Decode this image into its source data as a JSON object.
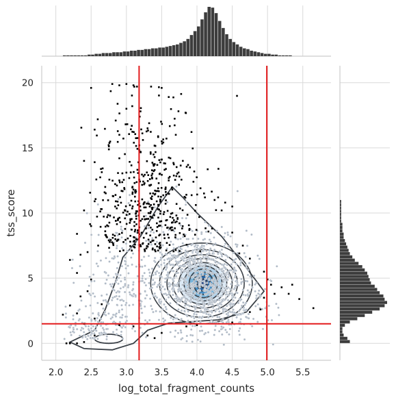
{
  "chart_data": {
    "type": "scatter",
    "subtype": "joint plot: scatter with 2D density contours and marginal histograms",
    "xlabel": "log_total_fragment_counts",
    "ylabel": "tss_score",
    "xlim": [
      1.8,
      5.9
    ],
    "ylim": [
      -1.3,
      21.3
    ],
    "x_ticks": [
      2.0,
      2.5,
      3.0,
      3.5,
      4.0,
      4.5,
      5.0,
      5.5
    ],
    "x_tick_labels": [
      "2.0",
      "2.5",
      "3.0",
      "3.5",
      "4.0",
      "4.5",
      "5.0",
      "5.5"
    ],
    "y_ticks": [
      0,
      5,
      10,
      15,
      20
    ],
    "y_tick_labels": [
      "0",
      "5",
      "10",
      "15",
      "20"
    ],
    "grid": true,
    "thresholds": {
      "vertical_lines_x": [
        3.18,
        4.99
      ],
      "horizontal_line_y": 1.5,
      "color": "#e31a1c"
    },
    "scatter": {
      "passing_color": "#b0bac6",
      "outlier_color": "#000000",
      "approx_points": [
        [
          2.8,
          19.9
        ],
        [
          2.9,
          19.8
        ],
        [
          3.0,
          19.9
        ],
        [
          3.1,
          19.8
        ],
        [
          3.15,
          19.7
        ],
        [
          3.35,
          19.7
        ],
        [
          3.5,
          19.6
        ],
        [
          2.5,
          19.6
        ],
        [
          3.0,
          18.0
        ],
        [
          3.2,
          17.8
        ],
        [
          3.6,
          18.9
        ],
        [
          3.3,
          16.5
        ],
        [
          2.9,
          16.0
        ],
        [
          2.55,
          16.4
        ],
        [
          3.5,
          15.5
        ],
        [
          3.7,
          16.0
        ],
        [
          3.8,
          14.0
        ],
        [
          3.9,
          13.5
        ],
        [
          2.4,
          14.0
        ],
        [
          2.55,
          13.9
        ],
        [
          3.2,
          14.7
        ],
        [
          2.9,
          14.2
        ],
        [
          3.0,
          13.1
        ],
        [
          3.4,
          13.3
        ],
        [
          3.6,
          12.5
        ],
        [
          3.55,
          13.8
        ],
        [
          3.75,
          12.8
        ],
        [
          3.95,
          12.4
        ],
        [
          4.05,
          11.9
        ],
        [
          3.85,
          11.4
        ],
        [
          4.1,
          11.5
        ],
        [
          4.3,
          11.2
        ],
        [
          4.4,
          10.8
        ],
        [
          4.5,
          10.5
        ],
        [
          2.7,
          12.0
        ],
        [
          2.9,
          12.5
        ],
        [
          3.1,
          11.8
        ],
        [
          3.25,
          12.2
        ],
        [
          3.45,
          11.9
        ],
        [
          2.4,
          10.2
        ],
        [
          2.55,
          10.9
        ],
        [
          2.65,
          10.3
        ],
        [
          2.85,
          10.9
        ],
        [
          3.05,
          10.6
        ],
        [
          3.2,
          10.2
        ],
        [
          2.5,
          9.0
        ],
        [
          2.7,
          8.6
        ],
        [
          2.85,
          9.4
        ],
        [
          2.3,
          8.4
        ],
        [
          2.6,
          7.5
        ],
        [
          2.45,
          7.0
        ],
        [
          2.75,
          7.9
        ],
        [
          2.2,
          6.4
        ],
        [
          2.35,
          6.8
        ],
        [
          2.3,
          5.4
        ],
        [
          2.5,
          4.9
        ],
        [
          2.45,
          4.0
        ],
        [
          2.35,
          3.6
        ],
        [
          2.2,
          2.9
        ],
        [
          2.3,
          2.3
        ],
        [
          2.1,
          2.2
        ],
        [
          2.4,
          1.5
        ],
        [
          2.55,
          1.9
        ],
        [
          2.65,
          3.0
        ],
        [
          2.15,
          0.0
        ],
        [
          2.2,
          0.0
        ],
        [
          2.3,
          0.0
        ],
        [
          2.4,
          0.1
        ],
        [
          2.55,
          0.6
        ],
        [
          3.5,
          0.8
        ],
        [
          3.3,
          0.6
        ],
        [
          3.4,
          0.4
        ],
        [
          4.25,
          11.0
        ],
        [
          4.35,
          10.2
        ],
        [
          4.5,
          8.5
        ],
        [
          4.65,
          7.5
        ],
        [
          4.75,
          6.5
        ],
        [
          4.6,
          6.9
        ],
        [
          4.95,
          5.5
        ],
        [
          5.0,
          4.9
        ],
        [
          5.05,
          4.5
        ],
        [
          5.1,
          3.8
        ],
        [
          4.95,
          3.5
        ],
        [
          5.2,
          4.3
        ],
        [
          5.35,
          4.5
        ],
        [
          5.3,
          3.8
        ],
        [
          5.45,
          3.4
        ],
        [
          4.9,
          2.6
        ],
        [
          4.75,
          2.4
        ],
        [
          5.65,
          2.7
        ],
        [
          3.1,
          1.3
        ],
        [
          2.9,
          1.4
        ],
        [
          4.0,
          1.4
        ],
        [
          3.85,
          1.3
        ],
        [
          4.5,
          1.6
        ]
      ]
    },
    "density_contours": {
      "center": [
        4.1,
        4.5
      ],
      "levels": 10,
      "line_color": "#3a4047",
      "fill_colors": [
        "#d6e6f4",
        "#a9cde6",
        "#6faed6",
        "#3c86c0",
        "#1c5ea8",
        "#0d2d6d"
      ],
      "secondary_mode": [
        2.75,
        0.35
      ]
    },
    "marginal_x_histogram": {
      "bins_start": 2.1,
      "bin_width": 0.05,
      "counts": [
        1,
        1,
        1,
        1,
        1,
        1,
        1,
        2,
        2,
        3,
        3,
        4,
        4,
        4,
        5,
        5,
        5,
        6,
        6,
        7,
        7,
        8,
        8,
        9,
        9,
        10,
        10,
        11,
        11,
        12,
        13,
        14,
        15,
        17,
        19,
        22,
        27,
        32,
        38,
        47,
        56,
        63,
        62,
        55,
        45,
        36,
        28,
        22,
        18,
        15,
        12,
        10,
        9,
        7,
        6,
        5,
        4,
        3,
        3,
        2,
        2,
        1,
        1,
        1,
        1
      ]
    },
    "marginal_y_histogram": {
      "bins_start": 0.0,
      "bin_width": 0.25,
      "counts": [
        8,
        6,
        3,
        2,
        2,
        4,
        8,
        14,
        20,
        26,
        32,
        36,
        38,
        36,
        35,
        32,
        30,
        28,
        25,
        24,
        23,
        22,
        20,
        18,
        15,
        12,
        10,
        8,
        7,
        6,
        5,
        4,
        3,
        3,
        2,
        2,
        2,
        1,
        1,
        1,
        1,
        1,
        1,
        1
      ]
    }
  }
}
